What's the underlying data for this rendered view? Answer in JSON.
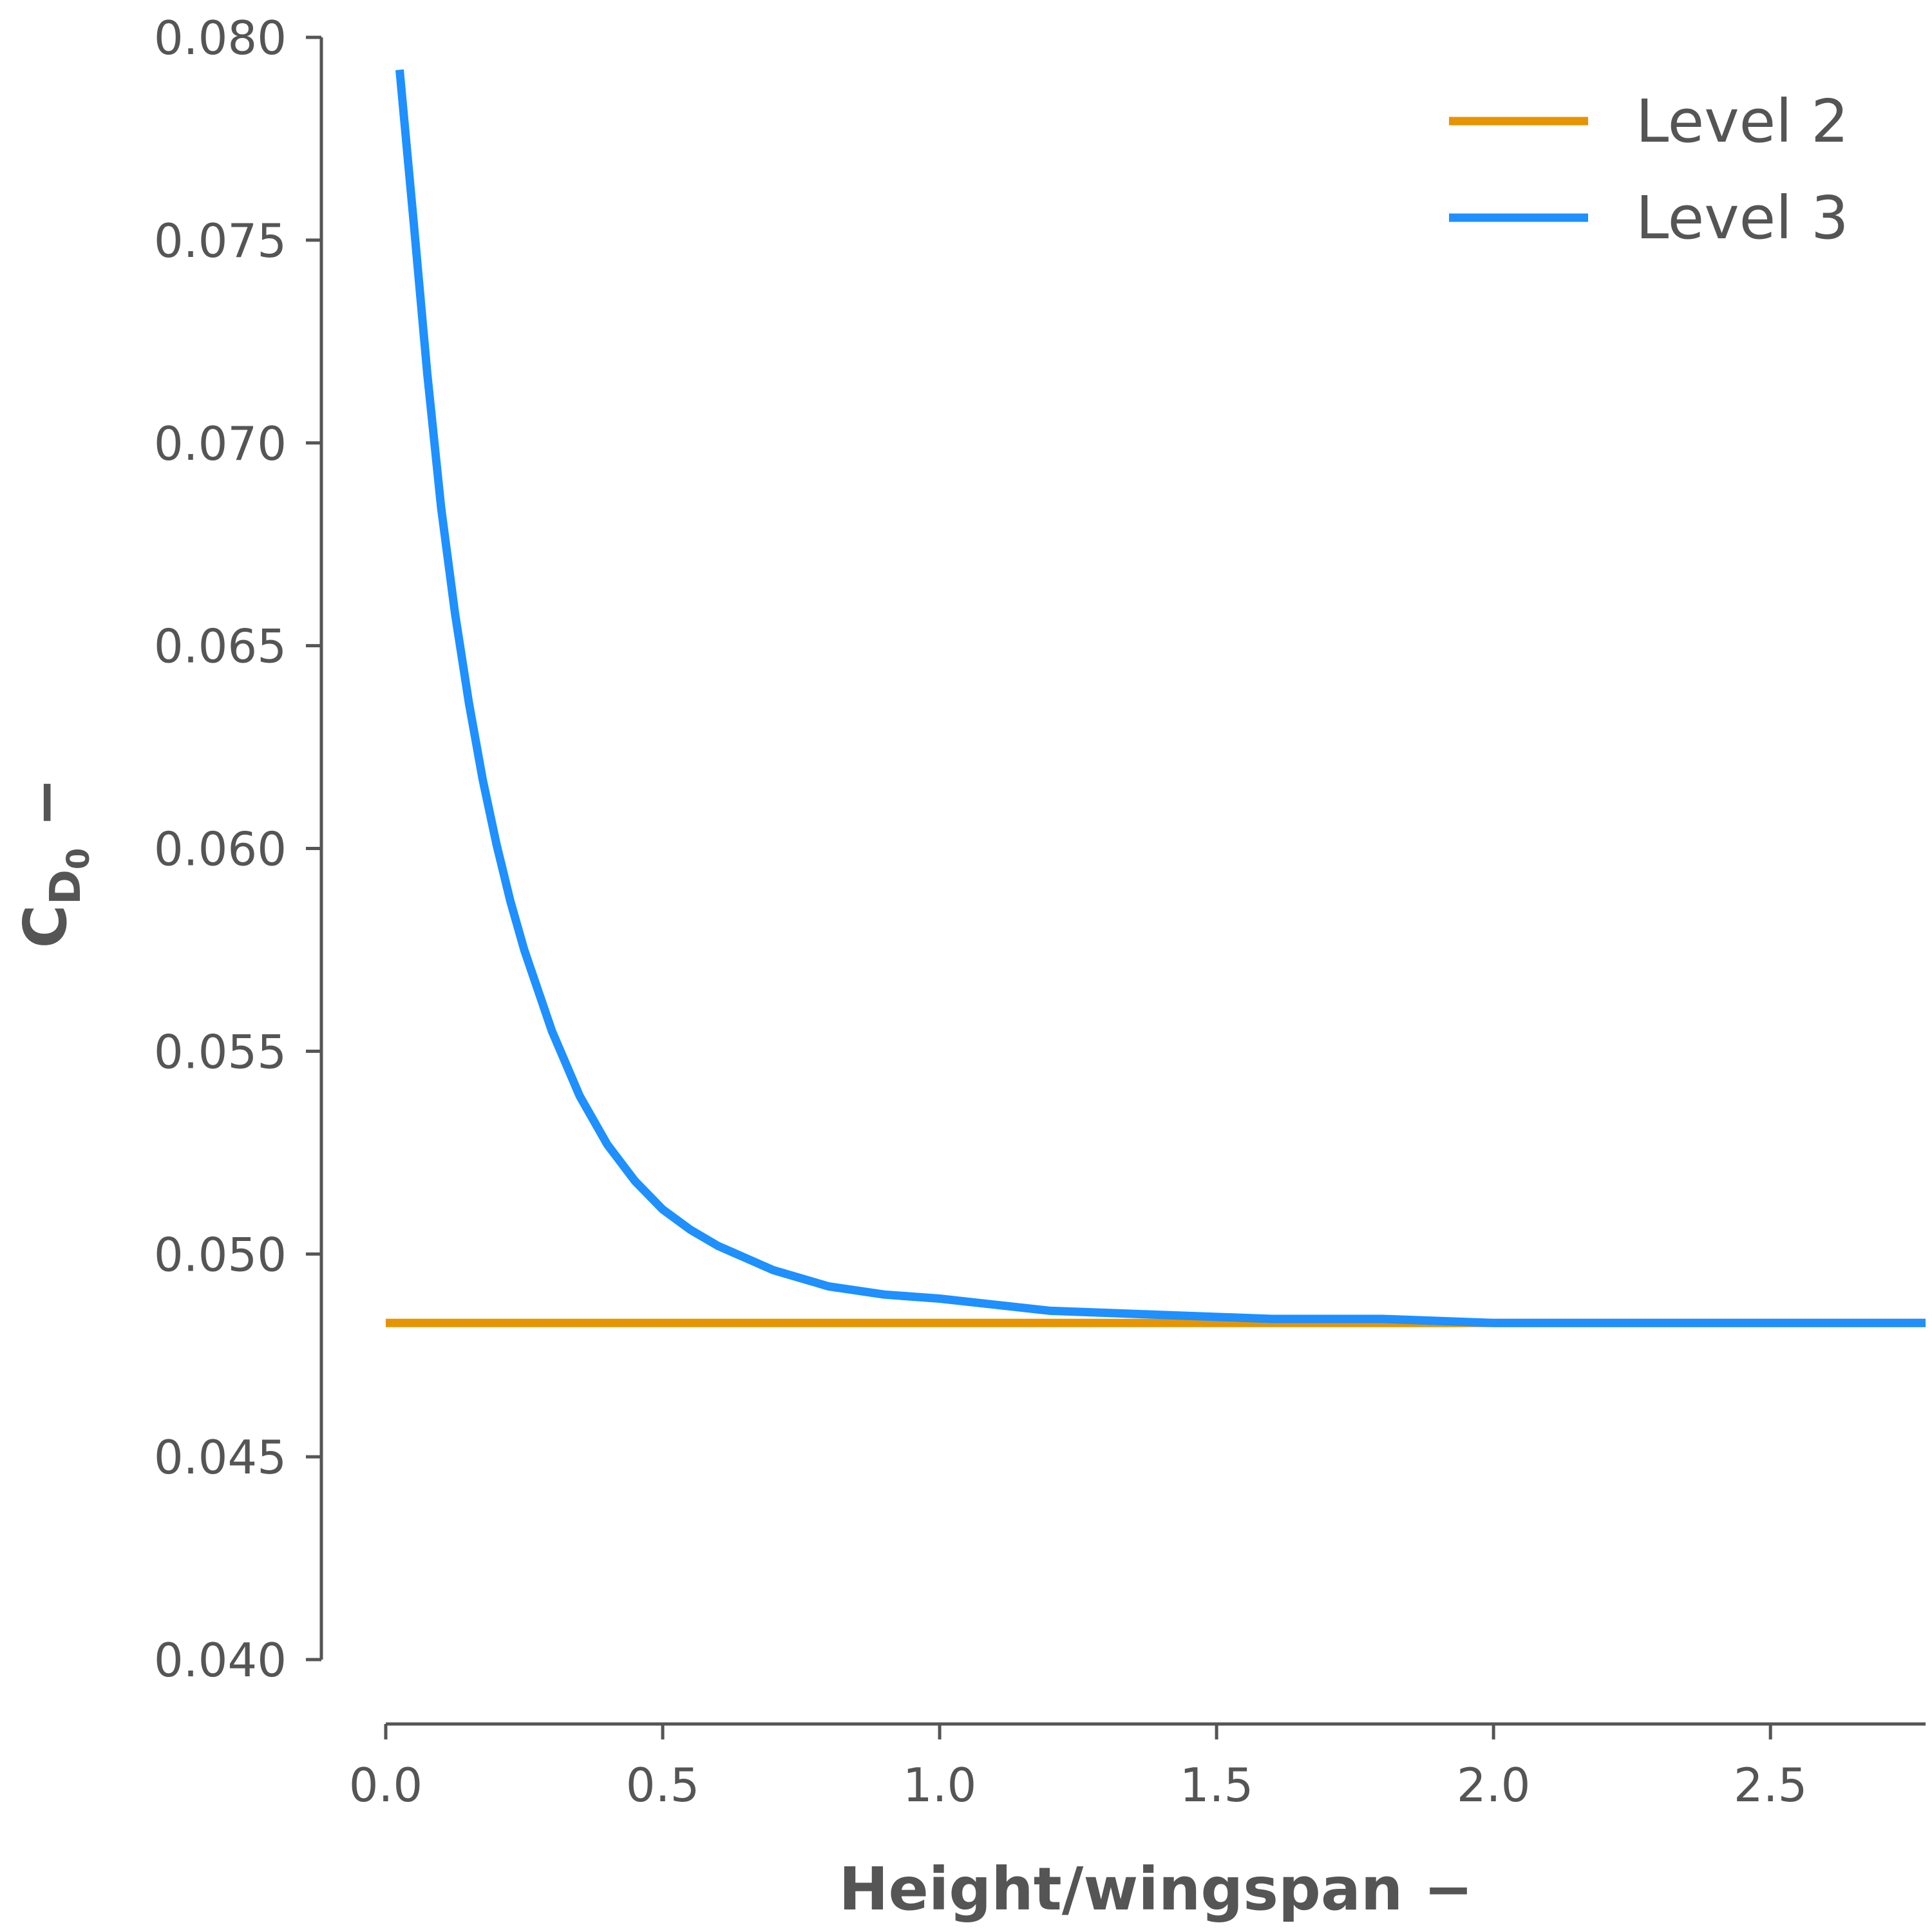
{
  "chart_data": {
    "type": "line",
    "xlabel": "Height/wingspan −",
    "ylabel": {
      "main": "C",
      "sub": "D",
      "subsub": "0",
      "suffix": " −"
    },
    "xlim": [
      0.0,
      2.78
    ],
    "ylim": [
      0.04,
      0.08
    ],
    "x_ticks": [
      "0.0",
      "0.5",
      "1.0",
      "1.5",
      "2.0",
      "2.5"
    ],
    "y_ticks": [
      "0.040",
      "0.045",
      "0.050",
      "0.055",
      "0.060",
      "0.065",
      "0.070",
      "0.075",
      "0.080"
    ],
    "grid": false,
    "legend_position": "top-right",
    "series": [
      {
        "name": "Level 2",
        "color": "#E69500",
        "x": [
          0.0,
          2.78
        ],
        "y": [
          0.0483,
          0.0483
        ]
      },
      {
        "name": "Level 3",
        "color": "#1E90FF",
        "x": [
          0.025,
          0.05,
          0.075,
          0.1,
          0.125,
          0.15,
          0.175,
          0.2,
          0.225,
          0.25,
          0.3,
          0.35,
          0.4,
          0.45,
          0.5,
          0.55,
          0.6,
          0.7,
          0.8,
          0.9,
          1.0,
          1.2,
          1.4,
          1.6,
          1.8,
          2.0,
          2.2,
          2.5,
          2.78
        ],
        "y": [
          0.0792,
          0.0755,
          0.0717,
          0.0684,
          0.0658,
          0.0636,
          0.0617,
          0.0601,
          0.0587,
          0.0575,
          0.0555,
          0.0539,
          0.0527,
          0.0518,
          0.0511,
          0.0506,
          0.0502,
          0.0496,
          0.0492,
          0.049,
          0.0489,
          0.0486,
          0.0485,
          0.0484,
          0.0484,
          0.0483,
          0.0483,
          0.0483,
          0.0483
        ]
      }
    ]
  }
}
